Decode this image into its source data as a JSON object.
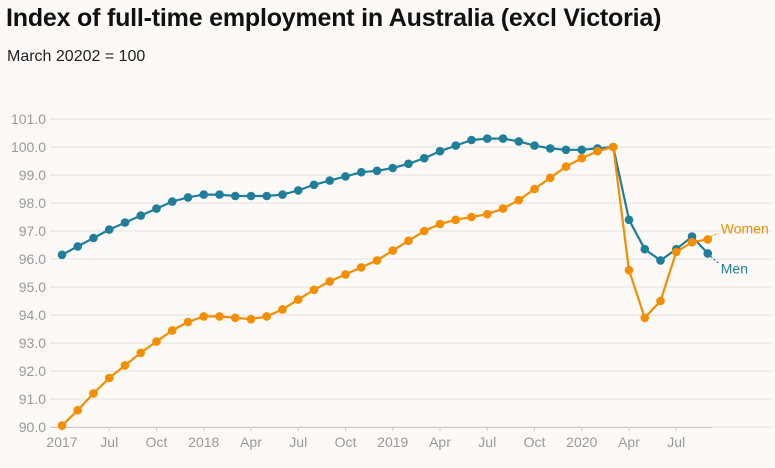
{
  "header": {
    "title": "Index of full-time employment in Australia (excl Victoria)",
    "subtitle": "March 20202 = 100"
  },
  "colors": {
    "men": "#1f7e9a",
    "women": "#f28e00",
    "grid": "#e4e1de",
    "tick": "#9a9a9a"
  },
  "chart_data": {
    "type": "line",
    "title": "Index of full-time employment in Australia (excl Victoria)",
    "subtitle": "March 20202 = 100",
    "xlabel": "",
    "ylabel": "",
    "ylim": [
      90.0,
      101.0
    ],
    "yticks": [
      "90.0",
      "91.0",
      "92.0",
      "93.0",
      "94.0",
      "95.0",
      "96.0",
      "97.0",
      "98.0",
      "99.0",
      "100.0",
      "101.0"
    ],
    "xticks": [
      {
        "label": "2017",
        "index": 0
      },
      {
        "label": "Jul",
        "index": 3
      },
      {
        "label": "Oct",
        "index": 6
      },
      {
        "label": "2018",
        "index": 9
      },
      {
        "label": "Apr",
        "index": 12
      },
      {
        "label": "Jul",
        "index": 15
      },
      {
        "label": "Oct",
        "index": 18
      },
      {
        "label": "2019",
        "index": 21
      },
      {
        "label": "Apr",
        "index": 24
      },
      {
        "label": "Jul",
        "index": 27
      },
      {
        "label": "Oct",
        "index": 30
      },
      {
        "label": "2020",
        "index": 33
      },
      {
        "label": "Apr",
        "index": 36
      },
      {
        "label": "Jul",
        "index": 39
      }
    ],
    "series": [
      {
        "name": "Men",
        "color": "#1f7e9a",
        "values": [
          96.15,
          96.45,
          96.75,
          97.05,
          97.3,
          97.55,
          97.8,
          98.05,
          98.2,
          98.3,
          98.3,
          98.25,
          98.25,
          98.25,
          98.3,
          98.45,
          98.65,
          98.8,
          98.95,
          99.1,
          99.15,
          99.25,
          99.4,
          99.6,
          99.85,
          100.05,
          100.25,
          100.3,
          100.3,
          100.2,
          100.05,
          99.95,
          99.9,
          99.9,
          99.95,
          100.0,
          97.4,
          96.35,
          95.95,
          96.35,
          96.8,
          96.2
        ]
      },
      {
        "name": "Women",
        "color": "#f28e00",
        "values": [
          90.05,
          90.6,
          91.2,
          91.75,
          92.2,
          92.65,
          93.05,
          93.45,
          93.75,
          93.95,
          93.95,
          93.9,
          93.85,
          93.95,
          94.2,
          94.55,
          94.9,
          95.2,
          95.45,
          95.7,
          95.95,
          96.3,
          96.65,
          97.0,
          97.25,
          97.4,
          97.5,
          97.6,
          97.8,
          98.1,
          98.5,
          98.9,
          99.3,
          99.6,
          99.85,
          100.0,
          95.6,
          93.9,
          94.5,
          96.25,
          96.6,
          96.7
        ]
      }
    ]
  }
}
